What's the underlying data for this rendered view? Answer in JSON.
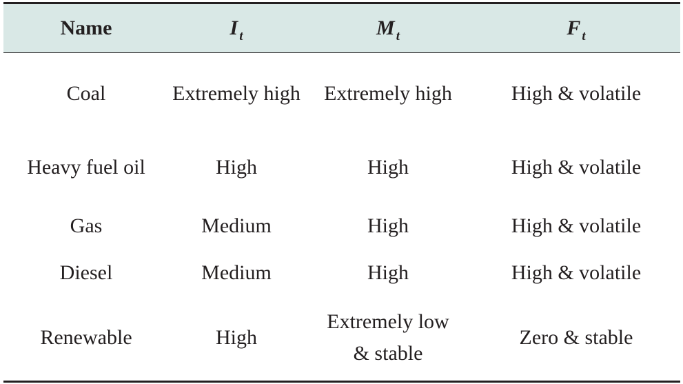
{
  "table": {
    "headers": [
      {
        "symbol": "Name",
        "sub": ""
      },
      {
        "symbol": "I",
        "sub": "t"
      },
      {
        "symbol": "M",
        "sub": "t"
      },
      {
        "symbol": "F",
        "sub": "t"
      }
    ],
    "rows": [
      {
        "name": "Coal",
        "it": "Extremely high",
        "mt": "Extremely high",
        "ft": "High & volatile"
      },
      {
        "name": "Heavy fuel oil",
        "it": "High",
        "mt": "High",
        "ft": "High & volatile"
      },
      {
        "name": "Gas",
        "it": "Medium",
        "mt": "High",
        "ft": "High & volatile"
      },
      {
        "name": "Diesel",
        "it": "Medium",
        "mt": "High",
        "ft": "High & volatile"
      },
      {
        "name": "Renewable",
        "it": "High",
        "mt": "Extremely low & stable",
        "ft": "Zero & stable"
      }
    ]
  },
  "colors": {
    "header_bg": "#d9e8e6",
    "rule": "#231f20",
    "text": "#231f20"
  }
}
